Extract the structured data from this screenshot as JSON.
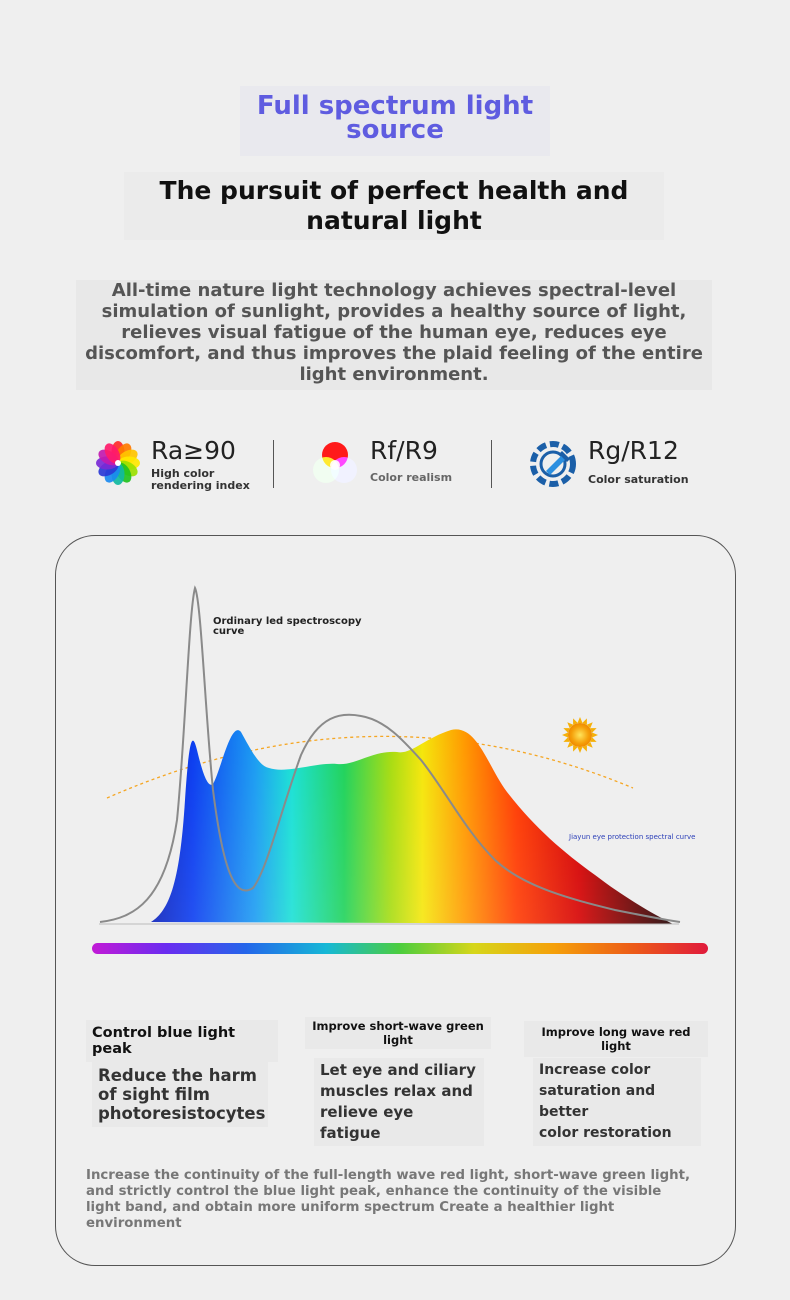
{
  "header": {
    "title_line1": "Full spectrum light",
    "title_line2": "source",
    "subtitle_line1": "The pursuit of perfect health and",
    "subtitle_line2": "natural light",
    "intro": "All-time nature light technology achieves spectral-level simulation of sunlight, provides a healthy source of light, relieves visual fatigue of the human eye, reduces eye discomfort, and thus improves the plaid feeling of the entire light environment."
  },
  "features": [
    {
      "label": "Ra≥90",
      "desc_line1": "High color",
      "desc_line2": "rendering index",
      "icon": "color-wheel-icon"
    },
    {
      "label": "Rf/R9",
      "desc": "Color realism",
      "icon": "rgb-circles-icon"
    },
    {
      "label": "Rg/R12",
      "desc": "Color saturation",
      "icon": "dropper-gauge-icon"
    }
  ],
  "chart": {
    "ordinary_label_line1": "Ordinary led spectroscopy",
    "ordinary_label_line2": "curve",
    "jiayun_label": "Jiayun eye protection spectral curve"
  },
  "columns": [
    {
      "head": "Control blue light peak",
      "body_lines": [
        "Reduce the harm",
        "of sight film",
        "photoresistocytes"
      ]
    },
    {
      "head_line1": "Improve short-wave green",
      "head_line2": "light",
      "body_lines": [
        "Let eye and ciliary",
        "muscles relax and",
        "relieve eye fatigue"
      ]
    },
    {
      "head": "Improve long wave red light",
      "body_lines": [
        "Increase color",
        "saturation and better",
        "color restoration"
      ]
    }
  ],
  "footer": "Increase the continuity of the full-length wave red light, short-wave green light, and strictly control the blue light peak, enhance the continuity of the visible light band, and obtain more uniform spectrum Create a healthier light environment",
  "colors": {
    "title": "#5f5ce0",
    "sun": "#f5a00a",
    "jiayun_label": "#2b3fb8"
  }
}
